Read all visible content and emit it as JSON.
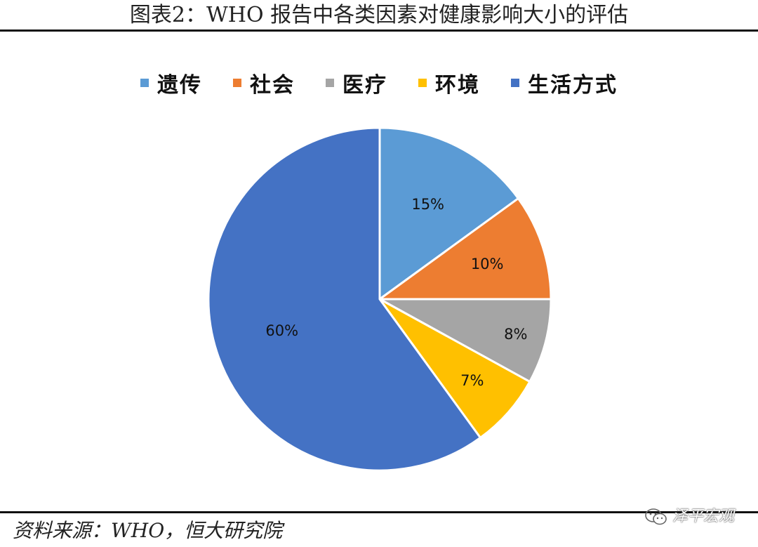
{
  "title": "图表2：WHO 报告中各类因素对健康影响大小的评估",
  "source": "资料来源：WHO，恒大研究院",
  "watermark": "泽平宏观",
  "icons": {
    "watermark": "wechat-icon"
  },
  "chart_data": {
    "type": "pie",
    "legend_position": "top",
    "categories": [
      "遗传",
      "社会",
      "医疗",
      "环境",
      "生活方式"
    ],
    "values": [
      15,
      10,
      8,
      7,
      60
    ],
    "labels": [
      "15%",
      "10%",
      "8%",
      "7%",
      "60%"
    ],
    "colors": [
      "#5B9BD5",
      "#ED7D31",
      "#A5A5A5",
      "#FFC000",
      "#4472C4"
    ]
  }
}
